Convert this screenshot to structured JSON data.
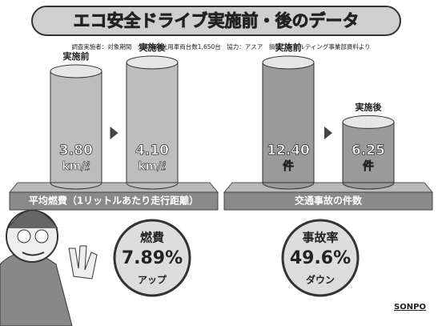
{
  "title": "エコ安全ドライブ実施前・後のデータ",
  "source": "調査実施者：対象期間　全国損保社用車両台数1,650台　協力：アスア　損保コンサルティング事業部資料より",
  "chart_data": [
    {
      "type": "bar",
      "xlabel": "平均燃費（1リットルあたり走行距離）",
      "categories": [
        "実施前",
        "実施後"
      ],
      "values": [
        3.8,
        4.1
      ],
      "value_labels": [
        "3.80",
        "4.10"
      ],
      "unit": "km/ℓ",
      "color": "#bdbdbd"
    },
    {
      "type": "bar",
      "xlabel": "交通事故の件数",
      "categories": [
        "実施前",
        "実施後"
      ],
      "values": [
        12.4,
        6.25
      ],
      "value_labels": [
        "12.40",
        "6.25"
      ],
      "unit": "件",
      "color": "#9a9a9a"
    }
  ],
  "callouts": [
    {
      "head": "燃費",
      "value": "7.89%",
      "foot": "アップ"
    },
    {
      "head": "事故率",
      "value": "49.6%",
      "foot": "ダウン"
    }
  ],
  "logo": "SONPO"
}
